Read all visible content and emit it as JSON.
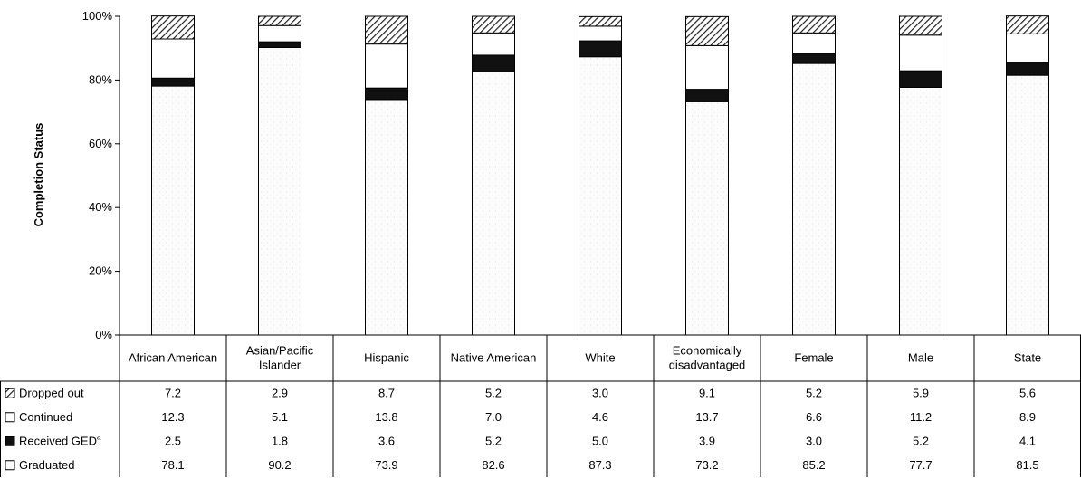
{
  "chart_data": {
    "type": "bar",
    "stacked": true,
    "percent": true,
    "ylabel": "Completion Status",
    "yticks": [
      "0%",
      "20%",
      "40%",
      "60%",
      "80%",
      "100%"
    ],
    "ylim": [
      0,
      100
    ],
    "categories": [
      "African American",
      "Asian/Pacific Islander",
      "Hispanic",
      "Native American",
      "White",
      "Economically disadvantaged",
      "Female",
      "Male",
      "State"
    ],
    "category_lines": [
      [
        "African American"
      ],
      [
        "Asian/Pacific",
        "Islander"
      ],
      [
        "Hispanic"
      ],
      [
        "Native American"
      ],
      [
        "White"
      ],
      [
        "Economically",
        "disadvantaged"
      ],
      [
        "Female"
      ],
      [
        "Male"
      ],
      [
        "State"
      ]
    ],
    "series": [
      {
        "name": "Dropped out",
        "values": [
          7.2,
          2.9,
          8.7,
          5.2,
          3.0,
          9.1,
          5.2,
          5.9,
          5.6
        ],
        "labels": [
          "7.2",
          "2.9",
          "8.7",
          "5.2",
          "3.0",
          "9.1",
          "5.2",
          "5.9",
          "5.6"
        ],
        "pattern": "hatch"
      },
      {
        "name": "Continued",
        "values": [
          12.3,
          5.1,
          13.8,
          7.0,
          4.6,
          13.7,
          6.6,
          11.2,
          8.9
        ],
        "labels": [
          "12.3",
          "5.1",
          "13.8",
          "7.0",
          "4.6",
          "13.7",
          "6.6",
          "11.2",
          "8.9"
        ],
        "pattern": "white"
      },
      {
        "name": "Received GED",
        "name_superscript": "a",
        "values": [
          2.5,
          1.8,
          3.6,
          5.2,
          5.0,
          3.9,
          3.0,
          5.2,
          4.1
        ],
        "labels": [
          "2.5",
          "1.8",
          "3.6",
          "5.2",
          "5.0",
          "3.9",
          "3.0",
          "5.2",
          "4.1"
        ],
        "pattern": "black"
      },
      {
        "name": "Graduated",
        "values": [
          78.1,
          90.2,
          73.9,
          82.6,
          87.3,
          73.2,
          85.2,
          77.7,
          81.5
        ],
        "labels": [
          "78.1",
          "90.2",
          "73.9",
          "82.6",
          "87.3",
          "73.2",
          "85.2",
          "77.7",
          "81.5"
        ],
        "pattern": "dotted"
      }
    ],
    "stack_order_bottom_to_top": [
      "Graduated",
      "Received GED",
      "Continued",
      "Dropped out"
    ],
    "table_row_order": [
      "Dropped out",
      "Continued",
      "Received GED",
      "Graduated"
    ],
    "colors": {
      "black": "#111111",
      "white": "#ffffff",
      "dotted": "#fafafa",
      "hatch_line": "#222222"
    }
  }
}
